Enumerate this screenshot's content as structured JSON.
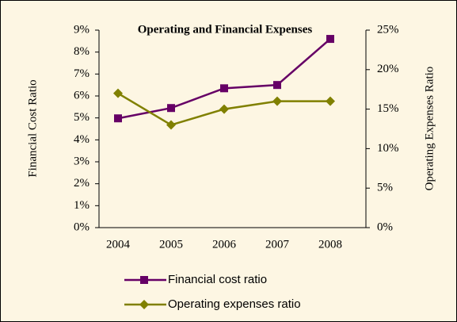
{
  "chart_data": {
    "type": "line",
    "title": "Operating and Financial Expenses",
    "y_label": "Financial Cost Ratio",
    "y2_label": "Operating Expenses Ratio",
    "categories": [
      "2004",
      "2005",
      "2006",
      "2007",
      "2008"
    ],
    "series": [
      {
        "name": "Financial cost ratio",
        "color": "#660066",
        "marker": "square",
        "values": [
          4.98,
          5.45,
          6.35,
          6.5,
          8.6
        ]
      },
      {
        "name": "Operating expenses ratio",
        "color": "#808000",
        "marker": "diamond",
        "axis": "y2",
        "values": [
          17,
          13,
          15,
          16,
          16
        ]
      }
    ],
    "ylim": [
      0,
      9
    ],
    "yticks": [
      {
        "value": 0,
        "label": "0%"
      },
      {
        "value": 1,
        "label": "1%"
      },
      {
        "value": 2,
        "label": "2%"
      },
      {
        "value": 3,
        "label": "3%"
      },
      {
        "value": 4,
        "label": "4%"
      },
      {
        "value": 5,
        "label": "5%"
      },
      {
        "value": 6,
        "label": "6%"
      },
      {
        "value": 7,
        "label": "7%"
      },
      {
        "value": 8,
        "label": "8%"
      },
      {
        "value": 9,
        "label": "9%"
      }
    ],
    "y2lim": [
      0,
      25
    ],
    "y2ticks": [
      {
        "value": 0,
        "label": "0%"
      },
      {
        "value": 5,
        "label": "5%"
      },
      {
        "value": 10,
        "label": "10%"
      },
      {
        "value": 15,
        "label": "15%"
      },
      {
        "value": 20,
        "label": "20%"
      },
      {
        "value": 25,
        "label": "25%"
      }
    ],
    "legend": "bottom",
    "grid": false
  }
}
